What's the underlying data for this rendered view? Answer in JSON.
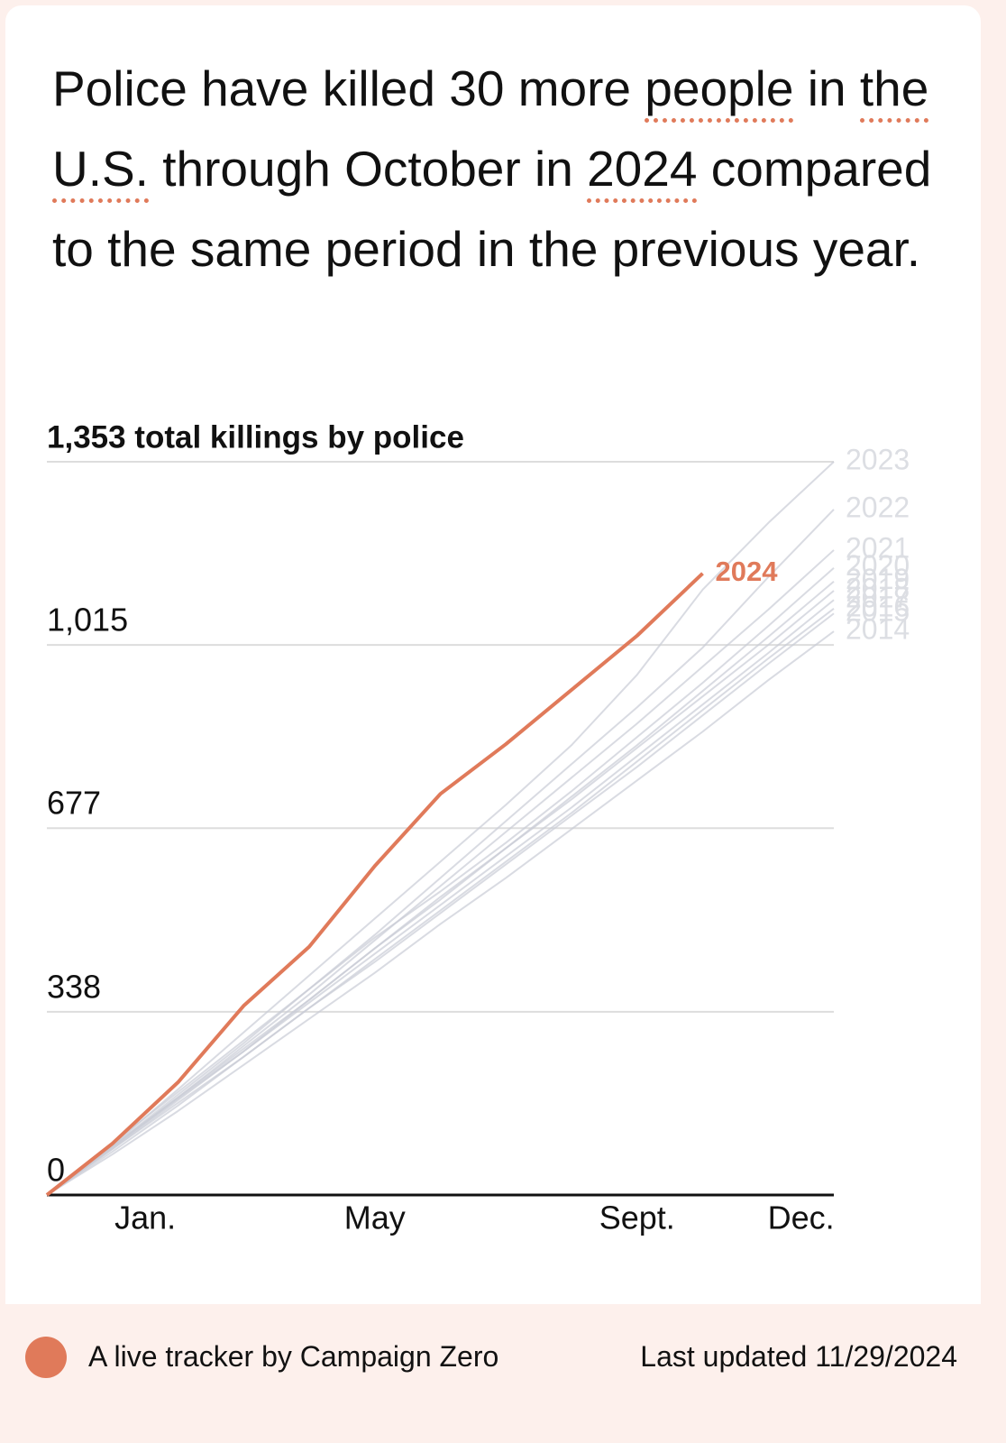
{
  "headline": {
    "before": "Police have killed 30 more",
    "group": "people",
    "middle1": "in",
    "place": "the U.S.",
    "middle2": "through October in",
    "year": "2024",
    "after": "compared to the same period in the previous year."
  },
  "chart_data": {
    "type": "line",
    "x": [
      0,
      1,
      2,
      3,
      4,
      5,
      6,
      7,
      8,
      9,
      10,
      11,
      12
    ],
    "xlim": [
      0,
      12
    ],
    "xticks": [
      {
        "value": 1.5,
        "label": "Jan."
      },
      {
        "value": 5,
        "label": "May"
      },
      {
        "value": 9,
        "label": "Sept."
      },
      {
        "value": 11.5,
        "label": "Dec."
      }
    ],
    "ylim": [
      0,
      1353
    ],
    "yticks": [
      0,
      338,
      677,
      {
        "value": 1015,
        "label": "1,015"
      },
      {
        "value": 1353,
        "label": "1,353 total killings by police"
      }
    ],
    "grid": true,
    "series": [
      {
        "name": "2014",
        "color": "#c9ccd6",
        "values": [
          0,
          75,
          155,
          240,
          325,
          410,
          500,
          585,
          675,
          765,
          855,
          950,
          1040
        ]
      },
      {
        "name": "2015",
        "color": "#c9ccd6",
        "values": [
          0,
          85,
          170,
          255,
          345,
          430,
          520,
          610,
          700,
          790,
          885,
          980,
          1073
        ]
      },
      {
        "name": "2016",
        "color": "#c9ccd6",
        "values": [
          0,
          80,
          165,
          255,
          345,
          435,
          525,
          615,
          705,
          800,
          895,
          990,
          1082
        ]
      },
      {
        "name": "2017",
        "color": "#c9ccd6",
        "values": [
          0,
          88,
          178,
          265,
          355,
          445,
          535,
          625,
          715,
          810,
          905,
          1000,
          1098
        ]
      },
      {
        "name": "2018",
        "color": "#c9ccd6",
        "values": [
          0,
          90,
          180,
          270,
          360,
          455,
          545,
          640,
          730,
          825,
          920,
          1015,
          1115
        ]
      },
      {
        "name": "2019",
        "color": "#c9ccd6",
        "values": [
          0,
          85,
          175,
          265,
          360,
          455,
          550,
          640,
          735,
          830,
          930,
          1030,
          1132
        ]
      },
      {
        "name": "2020",
        "color": "#c9ccd6",
        "values": [
          0,
          95,
          190,
          285,
          380,
          475,
          560,
          650,
          745,
          845,
          945,
          1050,
          1157
        ]
      },
      {
        "name": "2021",
        "color": "#c9ccd6",
        "values": [
          0,
          88,
          180,
          275,
          370,
          470,
          570,
          670,
          770,
          870,
          975,
          1080,
          1190
        ]
      },
      {
        "name": "2022",
        "color": "#c9ccd6",
        "values": [
          0,
          90,
          185,
          280,
          380,
          480,
          585,
          690,
          795,
          900,
          1010,
          1140,
          1265
        ]
      },
      {
        "name": "2023",
        "color": "#c9ccd6",
        "values": [
          0,
          92,
          195,
          300,
          405,
          510,
          615,
          720,
          830,
          960,
          1117,
          1240,
          1353
        ]
      },
      {
        "name": "2024",
        "color": "#e07a5a",
        "values": [
          0,
          95,
          208,
          349,
          458,
          607,
          740,
          832,
          932,
          1032,
          1147,
          null,
          null
        ]
      }
    ]
  },
  "footer": {
    "credit": "A live tracker by Campaign Zero",
    "updated": "Last updated 11/29/2024"
  }
}
